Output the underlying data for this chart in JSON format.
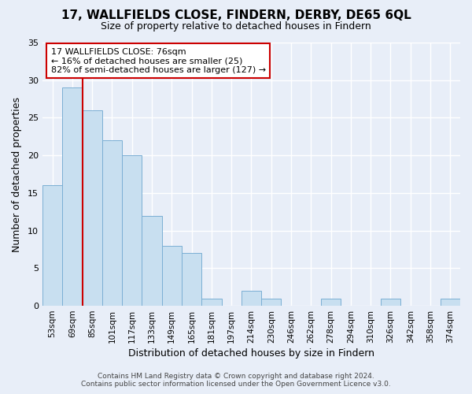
{
  "title": "17, WALLFIELDS CLOSE, FINDERN, DERBY, DE65 6QL",
  "subtitle": "Size of property relative to detached houses in Findern",
  "xlabel": "Distribution of detached houses by size in Findern",
  "ylabel": "Number of detached properties",
  "bar_labels": [
    "53sqm",
    "69sqm",
    "85sqm",
    "101sqm",
    "117sqm",
    "133sqm",
    "149sqm",
    "165sqm",
    "181sqm",
    "197sqm",
    "214sqm",
    "230sqm",
    "246sqm",
    "262sqm",
    "278sqm",
    "294sqm",
    "310sqm",
    "326sqm",
    "342sqm",
    "358sqm",
    "374sqm"
  ],
  "bar_values": [
    16,
    29,
    26,
    22,
    20,
    12,
    8,
    7,
    1,
    0,
    2,
    1,
    0,
    0,
    1,
    0,
    0,
    1,
    0,
    0,
    1
  ],
  "bar_color": "#c8dff0",
  "bar_edge_color": "#7bafd4",
  "highlight_bar_index": 1,
  "highlight_color": "#cc0000",
  "annotation_title": "17 WALLFIELDS CLOSE: 76sqm",
  "annotation_line1": "← 16% of detached houses are smaller (25)",
  "annotation_line2": "82% of semi-detached houses are larger (127) →",
  "annotation_box_color": "#ffffff",
  "annotation_box_edge": "#cc0000",
  "ylim": [
    0,
    35
  ],
  "yticks": [
    0,
    5,
    10,
    15,
    20,
    25,
    30,
    35
  ],
  "footer1": "Contains HM Land Registry data © Crown copyright and database right 2024.",
  "footer2": "Contains public sector information licensed under the Open Government Licence v3.0.",
  "bg_color": "#e8eef8",
  "plot_bg_color": "#e8eef8",
  "grid_color": "#ffffff",
  "title_fontsize": 11,
  "subtitle_fontsize": 9,
  "ylabel_fontsize": 9,
  "xlabel_fontsize": 9
}
